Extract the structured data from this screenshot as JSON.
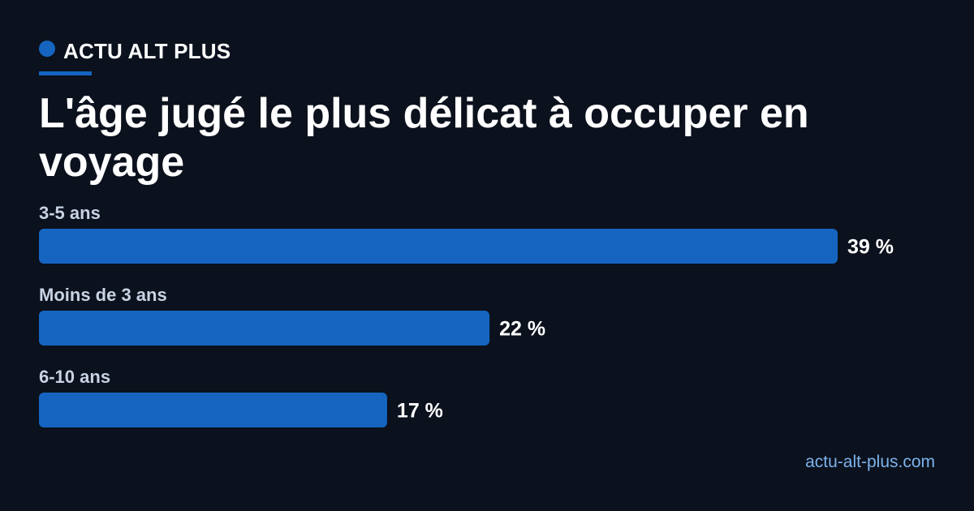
{
  "brand": {
    "name": "ACTU ALT PLUS",
    "accent_color": "#1565c0"
  },
  "chart_data": {
    "type": "bar",
    "orientation": "horizontal",
    "title": "L'âge jugé le plus délicat à occuper en voyage",
    "categories": [
      "3-5 ans",
      "Moins de 3 ans",
      "6-10 ans"
    ],
    "values": [
      39,
      22,
      17
    ],
    "value_labels": [
      "39 %",
      "22 %",
      "17 %"
    ],
    "unit": "%",
    "bar_color": "#1565c0",
    "grid": false,
    "legend": "none"
  },
  "footer": {
    "source": "actu-alt-plus.com"
  }
}
